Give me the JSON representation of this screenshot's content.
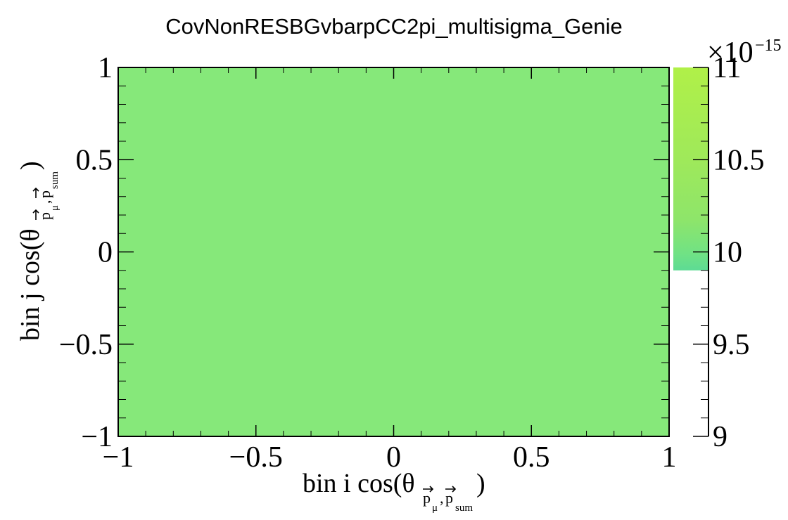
{
  "chart_data": {
    "type": "heatmap",
    "title": "CovNonRESBGvbarpCC2pi_multisigma_Genie",
    "xlabel": {
      "main": "bin i cos(θ",
      "sub_1": "p",
      "sub_1_sub": "μ",
      "sub_sep": ",",
      "sub_2": "p",
      "sub_2_sub": "sum",
      "close": ")"
    },
    "ylabel": {
      "main": "bin j cos(θ",
      "sub_1": "p",
      "sub_1_sub": "μ",
      "sub_sep": ",",
      "sub_2": "p",
      "sub_2_sub": "sum",
      "close": ")"
    },
    "xlim": [
      -1,
      1
    ],
    "ylim": [
      -1,
      1
    ],
    "x_ticks": [
      -1,
      -0.5,
      0,
      0.5,
      1
    ],
    "x_tick_labels": [
      "−1",
      "−0.5",
      "0",
      "0.5",
      "1"
    ],
    "y_ticks": [
      -1,
      -0.5,
      0,
      0.5,
      1
    ],
    "y_tick_labels": [
      "−1",
      "−0.5",
      "0",
      "0.5",
      "1"
    ],
    "cells": [
      {
        "x_range": [
          -1,
          1
        ],
        "y_range": [
          -1,
          1
        ],
        "value": 9.9e-15
      }
    ],
    "colorbar": {
      "range": [
        9.0,
        11.0
      ],
      "multiplier": "×10",
      "exponent": "−15",
      "ticks": [
        9,
        9.5,
        10,
        10.5,
        11
      ],
      "tick_labels": [
        "9",
        "9.5",
        "10",
        "10.5",
        "11"
      ],
      "filled_range": [
        9.9,
        11.0
      ]
    },
    "cell_color": "#86e87a",
    "grid": false
  }
}
